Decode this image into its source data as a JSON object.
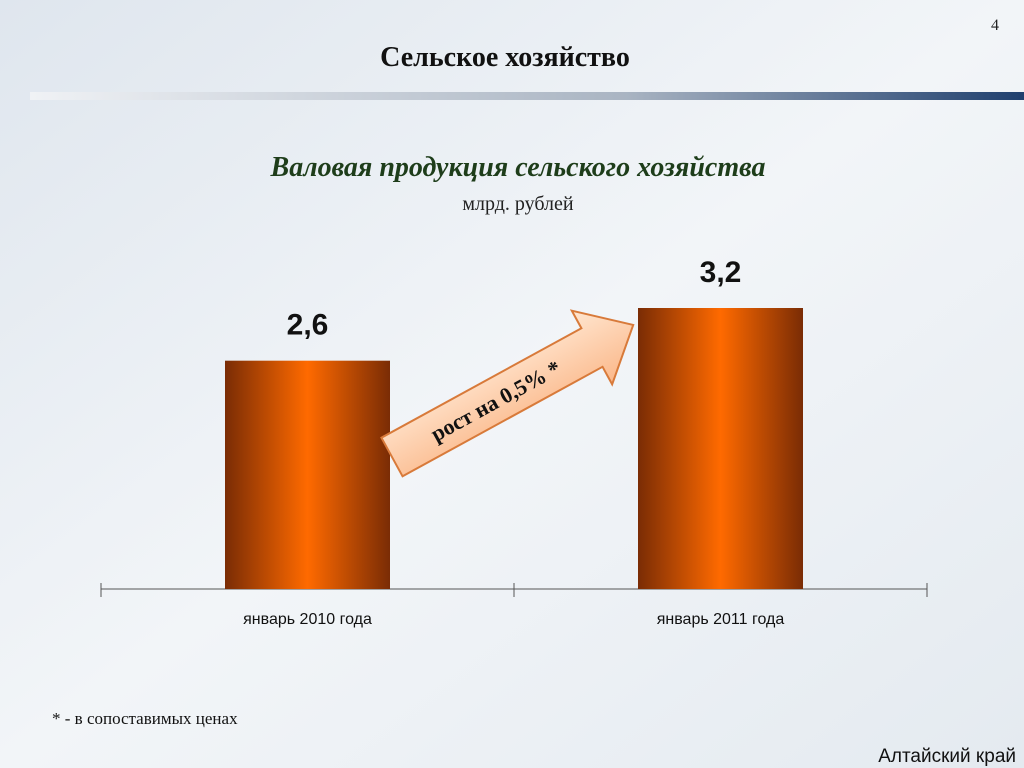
{
  "page_number": "4",
  "header": {
    "title": "Сельское хозяйство"
  },
  "chart_data": {
    "type": "bar",
    "title": "Валовая продукция сельского хозяйства",
    "subtitle": "млрд. рублей",
    "categories": [
      "январь 2010 года",
      "январь 2011 года"
    ],
    "values": [
      2.6,
      3.2
    ],
    "value_labels": [
      "2,6",
      "3,2"
    ],
    "color": "#ff6a00",
    "annotation": "рост на 0,5% *"
  },
  "footnote": "* - в сопоставимых ценах",
  "footer": "Алтайский край"
}
